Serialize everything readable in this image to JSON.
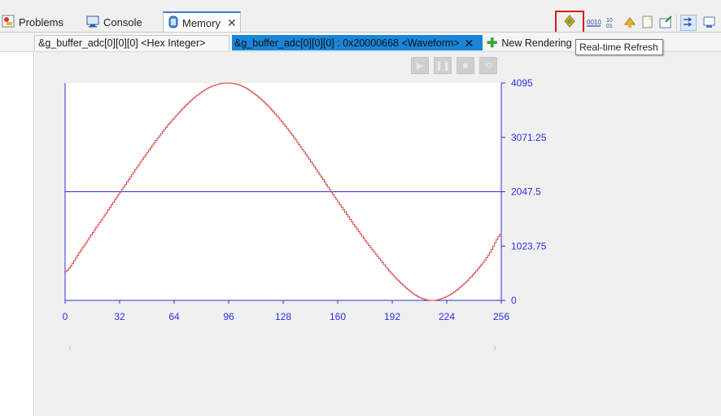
{
  "view_tabs": [
    {
      "label": "Problems",
      "icon": "problems-icon"
    },
    {
      "label": "Console",
      "icon": "console-icon"
    },
    {
      "label": "Memory",
      "icon": "memory-icon",
      "active": true
    }
  ],
  "toolbar": {
    "highlighted_button": "real-time-refresh",
    "tooltip": "Real-time Refresh",
    "icons": [
      "refresh-icon",
      "binary-icon",
      "binary-icon-2",
      "sync-icon",
      "new-page-icon",
      "export-icon",
      "linked-icon",
      "view-menu-icon"
    ]
  },
  "renderings": {
    "hex_tab": "&g_buffer_adc[0][0][0] <Hex Integer>",
    "wave_tab": "&g_buffer_adc[0][0][0] : 0x20000668 <Waveform>",
    "new_tab": "New Rendering"
  },
  "transport": [
    "play",
    "pause",
    "stop",
    "loop"
  ],
  "colors": {
    "accent": "#1a86d9",
    "axis": "#2e2ee0",
    "waveform": "#d94040",
    "highlight_box": "#d81b1b"
  },
  "chart_data": {
    "type": "line",
    "title": "",
    "xlabel": "",
    "ylabel": "",
    "xlim": [
      0,
      256
    ],
    "ylim": [
      0,
      4095
    ],
    "xticks": [
      "0",
      "32",
      "64",
      "96",
      "128",
      "160",
      "192",
      "224",
      "256"
    ],
    "yticks": [
      "0",
      "1023.75",
      "2047.5",
      "3071.25",
      "4095"
    ],
    "reference_line": 2047.5,
    "series": [
      {
        "x": [
          0,
          8,
          16,
          24,
          32,
          40,
          48,
          56,
          64,
          72,
          80,
          88,
          96,
          104,
          112,
          120,
          128,
          136,
          144,
          152,
          160,
          168,
          176,
          184,
          192,
          200,
          208,
          216,
          224,
          232,
          240,
          248,
          256
        ],
        "values": [
          540,
          900,
          1280,
          1660,
          2040,
          2420,
          2790,
          3140,
          3450,
          3720,
          3930,
          4060,
          4095,
          4030,
          3860,
          3620,
          3320,
          2980,
          2610,
          2230,
          1850,
          1480,
          1120,
          790,
          480,
          230,
          50,
          0,
          80,
          260,
          520,
          850,
          1280
        ]
      }
    ]
  }
}
